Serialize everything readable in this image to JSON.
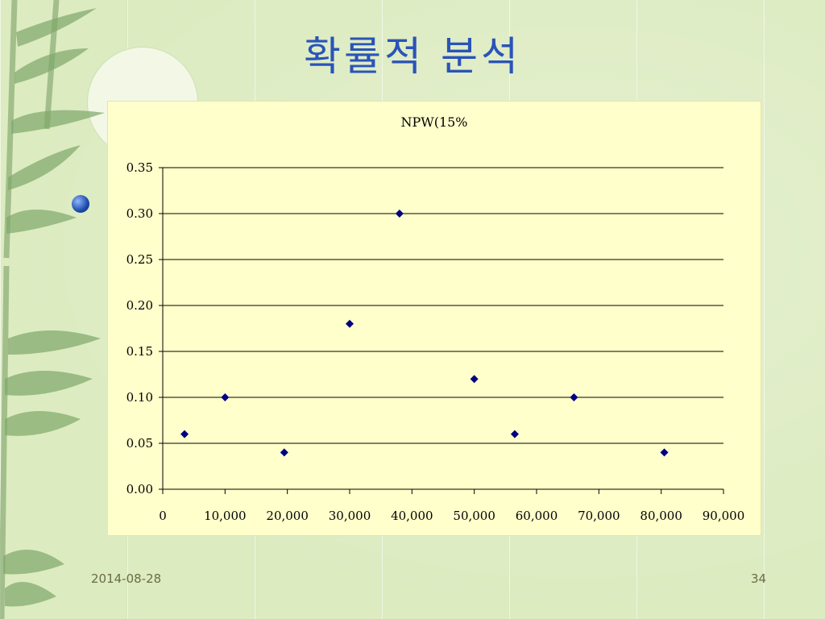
{
  "slide": {
    "title": "확률적 분석",
    "bullet_text": "",
    "footer_date": "2014-08-28",
    "page_number": "34"
  },
  "colors": {
    "title": "#2a54b8",
    "marker": "#000080",
    "plot_bg": "#ffffcc",
    "slide_bg": "#dcebc0"
  },
  "chart_data": {
    "type": "scatter",
    "title": "NPW(15%",
    "xlabel": "",
    "ylabel": "",
    "xlim": [
      0,
      90000
    ],
    "ylim": [
      0,
      0.35
    ],
    "x_ticks": [
      "0",
      "10,000",
      "20,000",
      "30,000",
      "40,000",
      "50,000",
      "60,000",
      "70,000",
      "80,000",
      "90,000"
    ],
    "y_ticks": [
      "0.00",
      "0.05",
      "0.10",
      "0.15",
      "0.20",
      "0.25",
      "0.30",
      "0.35"
    ],
    "grid": "horizontal",
    "marker": "diamond",
    "series": [
      {
        "points": [
          {
            "x": 3500,
            "y": 0.06
          },
          {
            "x": 10000,
            "y": 0.1
          },
          {
            "x": 19500,
            "y": 0.04
          },
          {
            "x": 30000,
            "y": 0.18
          },
          {
            "x": 38000,
            "y": 0.3
          },
          {
            "x": 50000,
            "y": 0.12
          },
          {
            "x": 56500,
            "y": 0.06
          },
          {
            "x": 66000,
            "y": 0.1
          },
          {
            "x": 80500,
            "y": 0.04
          }
        ]
      }
    ]
  }
}
